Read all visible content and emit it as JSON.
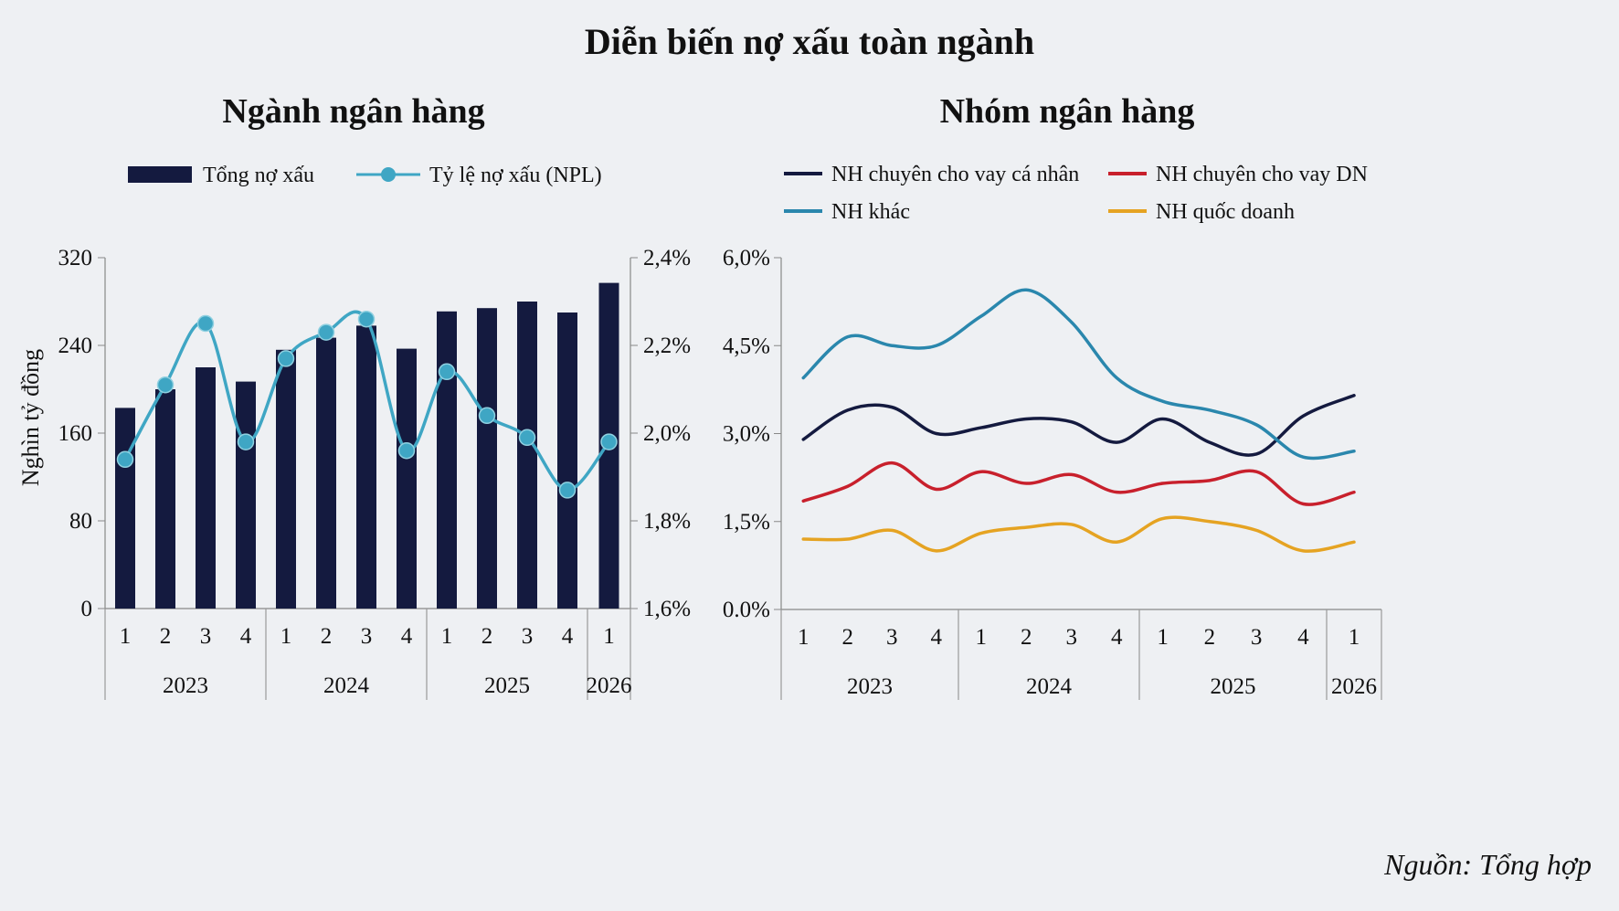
{
  "title": "Diễn biến nợ xấu toàn ngành",
  "source": "Nguồn: Tổng hợp",
  "chart_data": [
    {
      "type": "bar+line",
      "title": "Ngành ngân hàng",
      "ylabel": "Nghìn tỷ đồng",
      "ylim": [
        0,
        320
      ],
      "yticks": [
        "0",
        "80",
        "160",
        "240",
        "320"
      ],
      "y2lim": [
        1.6,
        2.4
      ],
      "y2ticks": [
        "1,6%",
        "1,8%",
        "2,0%",
        "2,2%",
        "2,4%"
      ],
      "quarters": [
        "1",
        "2",
        "3",
        "4",
        "1",
        "2",
        "3",
        "4",
        "1",
        "2",
        "3",
        "4",
        "1"
      ],
      "years": [
        "2023",
        "2024",
        "2025",
        "2026"
      ],
      "legend_position": "top",
      "series": [
        {
          "name": "Tổng nợ xấu",
          "kind": "bar",
          "color": "#141a3f",
          "values": [
            183,
            200,
            220,
            207,
            236,
            247,
            258,
            237,
            271,
            274,
            280,
            270,
            297
          ]
        },
        {
          "name": "Tỷ lệ nợ xấu (NPL)",
          "kind": "line",
          "axis": "right",
          "color": "#3fa6c4",
          "values": [
            1.94,
            2.11,
            2.25,
            1.98,
            2.17,
            2.23,
            2.26,
            1.96,
            2.14,
            2.04,
            1.99,
            1.87,
            1.98
          ]
        }
      ]
    },
    {
      "type": "line",
      "title": "Nhóm ngân hàng",
      "ylim": [
        0,
        6
      ],
      "yticks": [
        "0.0%",
        "1,5%",
        "3,0%",
        "4,5%",
        "6,0%"
      ],
      "quarters": [
        "1",
        "2",
        "3",
        "4",
        "1",
        "2",
        "3",
        "4",
        "1",
        "2",
        "3",
        "4",
        "1"
      ],
      "years": [
        "2023",
        "2024",
        "2025",
        "2026"
      ],
      "legend_position": "top",
      "series": [
        {
          "name": "NH chuyên cho vay cá nhân",
          "color": "#141a3f",
          "values": [
            2.9,
            3.4,
            3.45,
            3.0,
            3.1,
            3.25,
            3.2,
            2.85,
            3.25,
            2.85,
            2.65,
            3.3,
            3.65
          ]
        },
        {
          "name": "NH chuyên cho vay DN",
          "color": "#c8202c",
          "values": [
            1.85,
            2.1,
            2.5,
            2.05,
            2.35,
            2.15,
            2.3,
            2.0,
            2.15,
            2.2,
            2.35,
            1.8,
            2.0
          ]
        },
        {
          "name": "NH khác",
          "color": "#2a87ad",
          "values": [
            3.95,
            4.65,
            4.5,
            4.5,
            5.0,
            5.45,
            4.9,
            3.95,
            3.55,
            3.4,
            3.15,
            2.6,
            2.7
          ]
        },
        {
          "name": "NH quốc doanh",
          "color": "#e5a322",
          "values": [
            1.2,
            1.2,
            1.35,
            1.0,
            1.3,
            1.4,
            1.45,
            1.15,
            1.55,
            1.5,
            1.35,
            1.0,
            1.15
          ]
        }
      ]
    }
  ]
}
